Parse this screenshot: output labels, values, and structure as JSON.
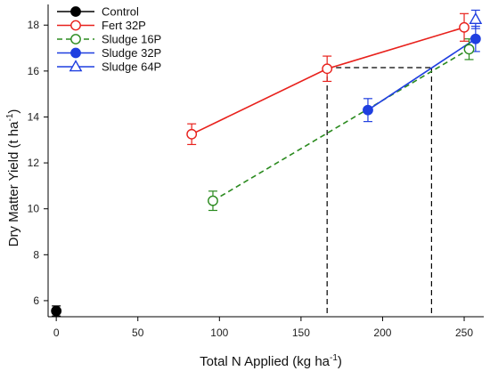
{
  "chart_data": {
    "type": "scatter",
    "xlabel": "Total N Applied (kg ha",
    "xlabel_sup": "-1",
    "xlabel_end": ")",
    "ylabel": "Dry Matter Yield (t ha",
    "ylabel_sup": "-1",
    "ylabel_end": ")",
    "xlim": [
      -5,
      262
    ],
    "ylim": [
      5.3,
      18.9
    ],
    "x_ticks": [
      0,
      50,
      100,
      150,
      200,
      250
    ],
    "y_ticks": [
      6,
      8,
      10,
      12,
      14,
      16,
      18
    ],
    "grid": false,
    "legend_position": "top-left",
    "series": [
      {
        "name": "Control",
        "color": "#000000",
        "marker": "circle-filled",
        "line": "none",
        "points": [
          {
            "x": 0,
            "y": 5.55,
            "err": 0.22
          }
        ]
      },
      {
        "name": "Fert 32P",
        "color": "#e8211c",
        "marker": "circle-open",
        "line": "solid",
        "points": [
          {
            "x": 83,
            "y": 13.25,
            "err": 0.45
          },
          {
            "x": 166,
            "y": 16.1,
            "err": 0.55
          },
          {
            "x": 250,
            "y": 17.9,
            "err": 0.6
          }
        ]
      },
      {
        "name": "Sludge 16P",
        "color": "#2a8a1e",
        "marker": "circle-open",
        "line": "dashed",
        "points": [
          {
            "x": 96,
            "y": 10.35,
            "err": 0.42
          },
          {
            "x": 253,
            "y": 16.95,
            "err": 0.45
          }
        ]
      },
      {
        "name": "Sludge 32P",
        "color": "#1f3fe0",
        "marker": "circle-filled",
        "line": "solid",
        "points": [
          {
            "x": 191,
            "y": 14.3,
            "err": 0.5
          },
          {
            "x": 257,
            "y": 17.4,
            "err": 0.55
          }
        ]
      },
      {
        "name": "Sludge 64P",
        "color": "#1f3fe0",
        "marker": "triangle-open",
        "line": "none",
        "points": [
          {
            "x": 257,
            "y": 18.25,
            "err": 0.4
          }
        ]
      }
    ],
    "reference_lines": [
      {
        "type": "horizontal",
        "y": 16.15,
        "x_from": 166,
        "x_to": 230
      },
      {
        "type": "vertical",
        "x": 166,
        "y_from": 16.15,
        "y_to": 5.3
      },
      {
        "type": "vertical",
        "x": 230,
        "y_from": 16.15,
        "y_to": 5.3
      }
    ]
  }
}
